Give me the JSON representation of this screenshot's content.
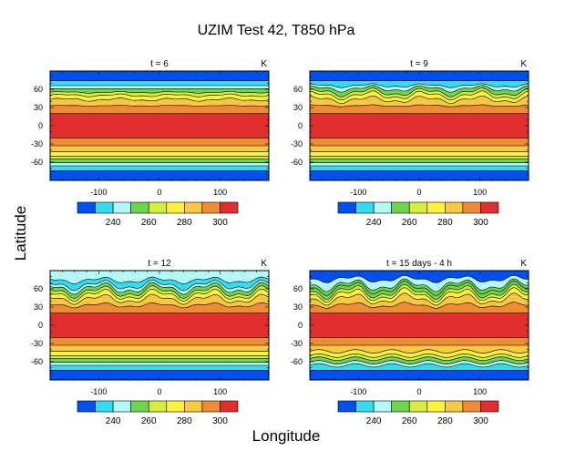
{
  "figure": {
    "title": "UZIM Test 42, T850 hPa",
    "xlabel": "Longitude",
    "ylabel": "Latitude"
  },
  "chart_data": [
    {
      "type": "heatmap",
      "title": "t = 6",
      "units": "K",
      "x_ticks": [
        -100,
        0,
        100
      ],
      "y_ticks": [
        60,
        30,
        0,
        -30,
        -60
      ],
      "xlim": [
        -180,
        180
      ],
      "ylim": [
        -90,
        90
      ],
      "colorbar": {
        "levels": [
          220,
          230,
          240,
          250,
          260,
          270,
          280,
          290,
          300,
          310
        ],
        "tick_labels": [
          "240",
          "260",
          "280",
          "300"
        ]
      },
      "bands_ymax": [
        90,
        74,
        66,
        61,
        55,
        50,
        43,
        33,
        20,
        -20,
        -33,
        -43,
        -50,
        -55,
        -61,
        -66,
        -74
      ],
      "bands_ymin": [
        74,
        66,
        61,
        55,
        50,
        43,
        33,
        20,
        -20,
        -33,
        -43,
        -50,
        -55,
        -61,
        -66,
        -74,
        -90
      ],
      "bands_level": [
        0,
        1,
        2,
        3,
        4,
        5,
        6,
        7,
        8,
        7,
        6,
        5,
        4,
        3,
        2,
        1,
        0
      ],
      "wave": {
        "amplitude_deg": 3,
        "lat_range": [
          30,
          60
        ]
      }
    },
    {
      "type": "heatmap",
      "title": "t = 9",
      "units": "K",
      "x_ticks": [
        -100,
        0,
        100
      ],
      "y_ticks": [
        60,
        30,
        0,
        -30,
        -60
      ],
      "xlim": [
        -180,
        180
      ],
      "ylim": [
        -90,
        90
      ],
      "colorbar": {
        "levels": [
          220,
          230,
          240,
          250,
          260,
          270,
          280,
          290,
          300,
          310
        ],
        "tick_labels": [
          "240",
          "260",
          "280",
          "300"
        ]
      },
      "bands_ymax": [
        90,
        74,
        66,
        61,
        55,
        50,
        43,
        33,
        20,
        -20,
        -33,
        -43,
        -50,
        -55,
        -61,
        -66,
        -74
      ],
      "bands_ymin": [
        74,
        66,
        61,
        55,
        50,
        43,
        33,
        20,
        -20,
        -33,
        -43,
        -50,
        -55,
        -61,
        -66,
        -74,
        -90
      ],
      "bands_level": [
        0,
        1,
        2,
        3,
        4,
        5,
        6,
        7,
        8,
        7,
        6,
        5,
        4,
        3,
        2,
        1,
        0
      ],
      "wave": {
        "amplitude_deg": 8,
        "lat_range": [
          30,
          72
        ]
      }
    },
    {
      "type": "heatmap",
      "title": "t = 12",
      "units": "K",
      "x_ticks": [
        -100,
        0,
        100
      ],
      "y_ticks": [
        60,
        30,
        0,
        -30,
        -60
      ],
      "xlim": [
        -180,
        180
      ],
      "ylim": [
        -90,
        90
      ],
      "colorbar": {
        "levels": [
          220,
          230,
          240,
          250,
          260,
          270,
          280,
          290,
          300,
          310
        ],
        "tick_labels": [
          "240",
          "260",
          "280",
          "300"
        ]
      },
      "bands_ymax": [
        90,
        74,
        66,
        61,
        55,
        50,
        43,
        33,
        20,
        -20,
        -33,
        -43,
        -50,
        -55,
        -61,
        -66,
        -74
      ],
      "bands_ymin": [
        74,
        66,
        61,
        55,
        50,
        43,
        33,
        20,
        -20,
        -33,
        -43,
        -50,
        -55,
        -61,
        -66,
        -74,
        -90
      ],
      "bands_level": [
        2,
        1,
        2,
        3,
        4,
        5,
        6,
        7,
        8,
        7,
        6,
        5,
        4,
        3,
        2,
        1,
        0
      ],
      "wave": {
        "amplitude_deg": 11,
        "lat_range": [
          25,
          85
        ]
      }
    },
    {
      "type": "heatmap",
      "title": "t = 15 days - 4 h",
      "units": "K",
      "x_ticks": [
        -100,
        0,
        100
      ],
      "y_ticks": [
        60,
        30,
        0,
        -30,
        -60
      ],
      "xlim": [
        -180,
        180
      ],
      "ylim": [
        -90,
        90
      ],
      "colorbar": {
        "levels": [
          220,
          230,
          240,
          250,
          260,
          270,
          280,
          290,
          300,
          310
        ],
        "tick_labels": [
          "240",
          "260",
          "280",
          "300"
        ]
      },
      "bands_ymax": [
        90,
        76,
        66,
        61,
        55,
        50,
        43,
        33,
        20,
        -20,
        -33,
        -43,
        -50,
        -55,
        -61,
        -66,
        -74
      ],
      "bands_ymin": [
        76,
        66,
        61,
        55,
        50,
        43,
        33,
        20,
        -20,
        -33,
        -43,
        -50,
        -55,
        -61,
        -66,
        -74,
        -90
      ],
      "bands_level": [
        0,
        2,
        3,
        3,
        4,
        5,
        6,
        7,
        8,
        7,
        6,
        5,
        4,
        3,
        2,
        1,
        0
      ],
      "wave": {
        "amplitude_deg": 13,
        "lat_range": [
          25,
          86
        ]
      }
    }
  ],
  "palette": [
    "#0050f0",
    "#34dcef",
    "#b4f8f7",
    "#6cd44f",
    "#d7ed3e",
    "#fdf23a",
    "#f7c943",
    "#ee8b34",
    "#e02e2e"
  ],
  "colors": {
    "frame": "#000000",
    "contour": "#000000"
  }
}
